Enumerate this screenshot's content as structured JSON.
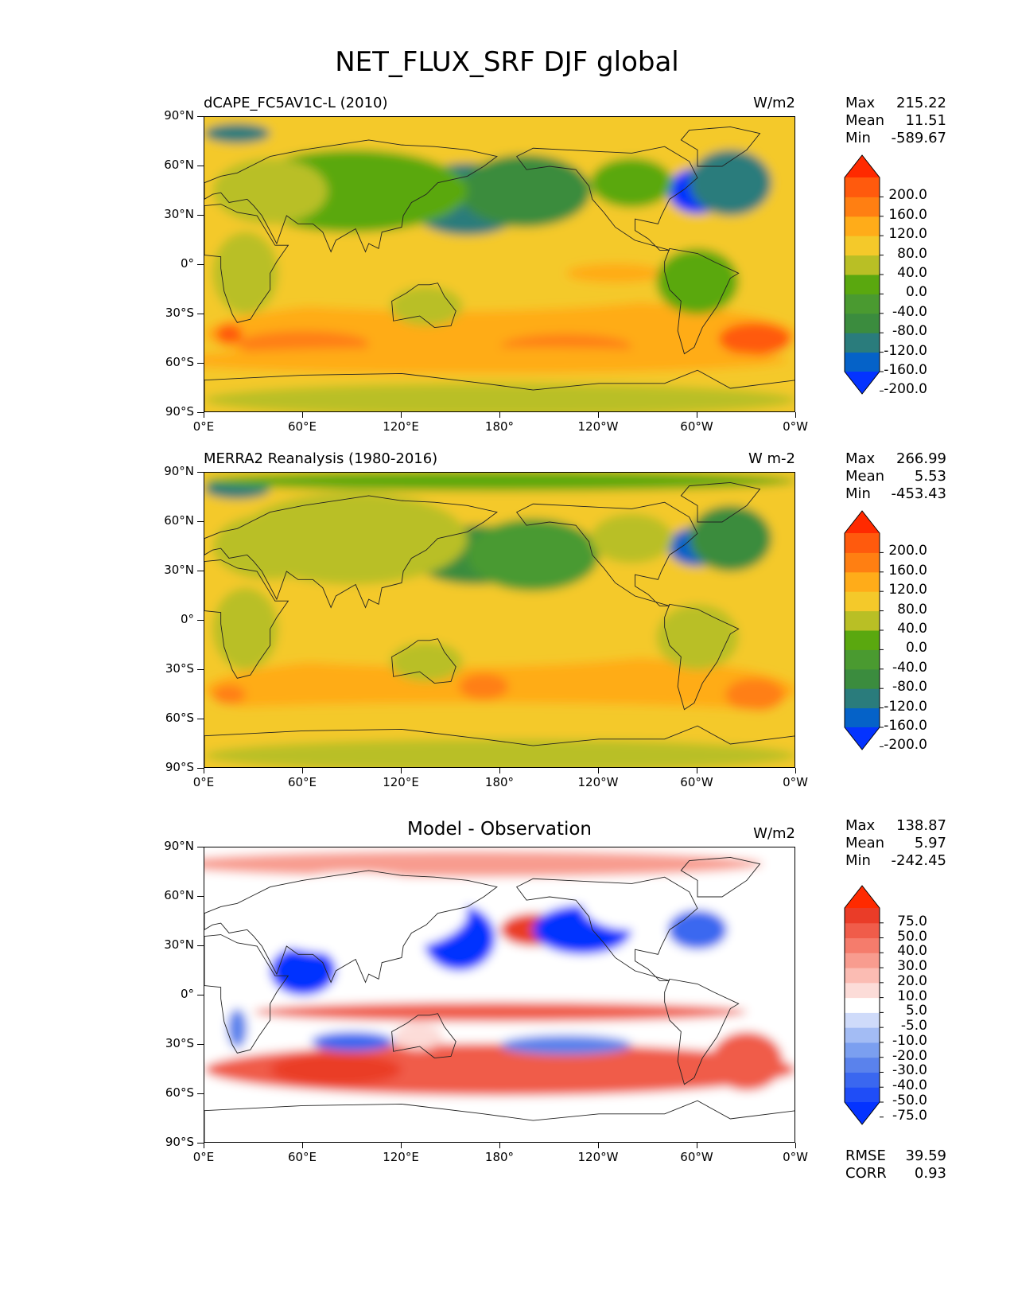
{
  "figure": {
    "title": "NET_FLUX_SRF DJF global"
  },
  "axes": {
    "lat_labels": [
      "90°N",
      "60°N",
      "30°N",
      "0°",
      "30°S",
      "60°S",
      "90°S"
    ],
    "lon_labels": [
      "0°E",
      "60°E",
      "120°E",
      "180°",
      "120°W",
      "60°W",
      "0°W"
    ]
  },
  "panels": [
    {
      "title_left": "dCAPE_FC5AV1C-L (2010)",
      "title_center": "",
      "units": "W/m2",
      "stats": {
        "max_label": "Max",
        "max": "215.22",
        "mean_label": "Mean",
        "mean": "11.51",
        "min_label": "Min",
        "min": "-589.67"
      },
      "colorbar": {
        "labels": [
          "200.0",
          "160.0",
          "120.0",
          "80.0",
          "40.0",
          "0.0",
          "-40.0",
          "-80.0",
          "-120.0",
          "-160.0",
          "-200.0"
        ],
        "colors": [
          "#0433ff",
          "#0562c8",
          "#2a7c7c",
          "#3b8c3e",
          "#4a9a30",
          "#5aa80f",
          "#b9bf25",
          "#f4c92a",
          "#ffac19",
          "#ff7f12",
          "#ff5a0d",
          "#ff2a00"
        ]
      }
    },
    {
      "title_left": "MERRA2 Reanalysis (1980-2016)",
      "title_center": "",
      "units": "W m-2",
      "stats": {
        "max_label": "Max",
        "max": "266.99",
        "mean_label": "Mean",
        "mean": "5.53",
        "min_label": "Min",
        "min": "-453.43"
      },
      "colorbar": {
        "labels": [
          "200.0",
          "160.0",
          "120.0",
          "80.0",
          "40.0",
          "0.0",
          "-40.0",
          "-80.0",
          "-120.0",
          "-160.0",
          "-200.0"
        ],
        "colors": [
          "#0433ff",
          "#0562c8",
          "#2a7c7c",
          "#3b8c3e",
          "#4a9a30",
          "#5aa80f",
          "#b9bf25",
          "#f4c92a",
          "#ffac19",
          "#ff7f12",
          "#ff5a0d",
          "#ff2a00"
        ]
      }
    },
    {
      "title_left": "",
      "title_center": "Model - Observation",
      "units": "W/m2",
      "stats": {
        "max_label": "Max",
        "max": "138.87",
        "mean_label": "Mean",
        "mean": "5.97",
        "min_label": "Min",
        "min": "-242.45"
      },
      "colorbar": {
        "labels": [
          "75.0",
          "50.0",
          "40.0",
          "30.0",
          "20.0",
          "10.0",
          "5.0",
          "-5.0",
          "-10.0",
          "-20.0",
          "-30.0",
          "-40.0",
          "-50.0",
          "-75.0"
        ],
        "colors": [
          "#0433ff",
          "#1f4df7",
          "#3a67f0",
          "#5a82ec",
          "#7b9ff0",
          "#a3bcf4",
          "#cfdbfa",
          "#ffffff",
          "#fcdcd8",
          "#fbbcb3",
          "#f89c8f",
          "#f57c6c",
          "#f05c4a",
          "#ea3c28",
          "#ff2a00"
        ]
      },
      "extra": {
        "rmse_label": "RMSE",
        "rmse": "39.59",
        "corr_label": "CORR",
        "corr": "0.93"
      }
    }
  ]
}
